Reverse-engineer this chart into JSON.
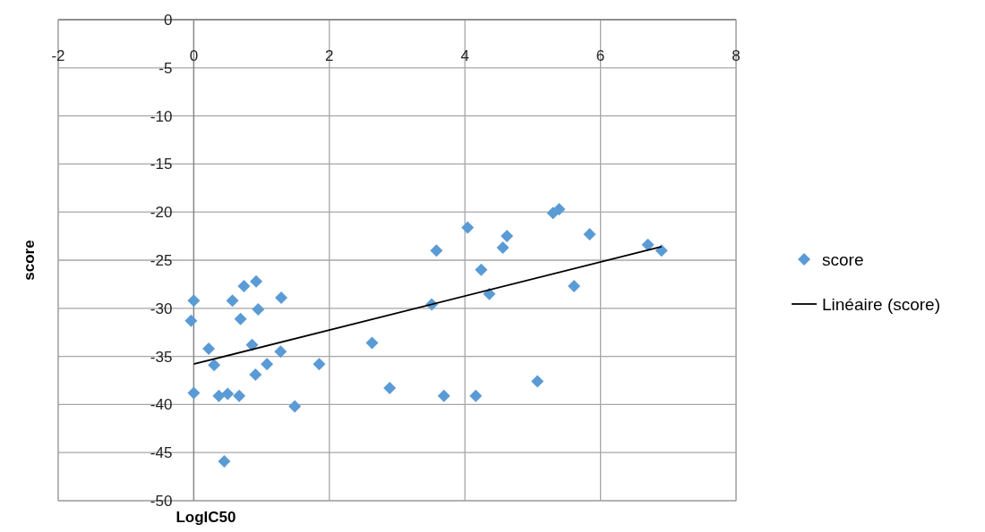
{
  "chart_data": {
    "type": "scatter",
    "xlabel": "LogIC50",
    "ylabel": "score",
    "xlim": [
      -2,
      8
    ],
    "ylim": [
      -50,
      0
    ],
    "xticks": [
      -2,
      0,
      2,
      4,
      6,
      8
    ],
    "yticks": [
      0,
      -5,
      -10,
      -15,
      -20,
      -25,
      -30,
      -35,
      -40,
      -45,
      -50
    ],
    "grid": true,
    "legend": "right",
    "series": [
      {
        "name": "score",
        "marker": "diamond",
        "color": "#5b9bd5",
        "x": [
          0,
          -0.04,
          0,
          0.22,
          0.3,
          0.37,
          0.5,
          0.45,
          0.57,
          0.67,
          0.69,
          0.74,
          0.86,
          0.92,
          0.91,
          0.95,
          1.08,
          1.29,
          1.28,
          1.49,
          1.85,
          2.63,
          2.89,
          3.51,
          3.58,
          3.69,
          4.04,
          4.16,
          4.24,
          4.36,
          4.56,
          4.62,
          5.07,
          5.3,
          5.39,
          5.61,
          5.84,
          6.7,
          6.9
        ],
        "values": [
          -29.2,
          -31.3,
          -38.8,
          -34.2,
          -35.9,
          -39.1,
          -38.9,
          -45.9,
          -29.2,
          -39.1,
          -31.1,
          -27.7,
          -33.8,
          -27.2,
          -36.9,
          -30.1,
          -35.8,
          -28.9,
          -34.5,
          -40.2,
          -35.8,
          -33.6,
          -38.3,
          -29.6,
          -24,
          -39.1,
          -21.6,
          -39.1,
          -26,
          -28.5,
          -23.7,
          -22.5,
          -37.6,
          -20.1,
          -19.7,
          -27.7,
          -22.3,
          -23.4,
          -24
        ]
      },
      {
        "name": "Linéaire (score)",
        "type": "line",
        "color": "#000000",
        "marker": "none",
        "x": [
          0,
          6.9
        ],
        "values": [
          -35.8,
          -23.6
        ]
      }
    ]
  }
}
